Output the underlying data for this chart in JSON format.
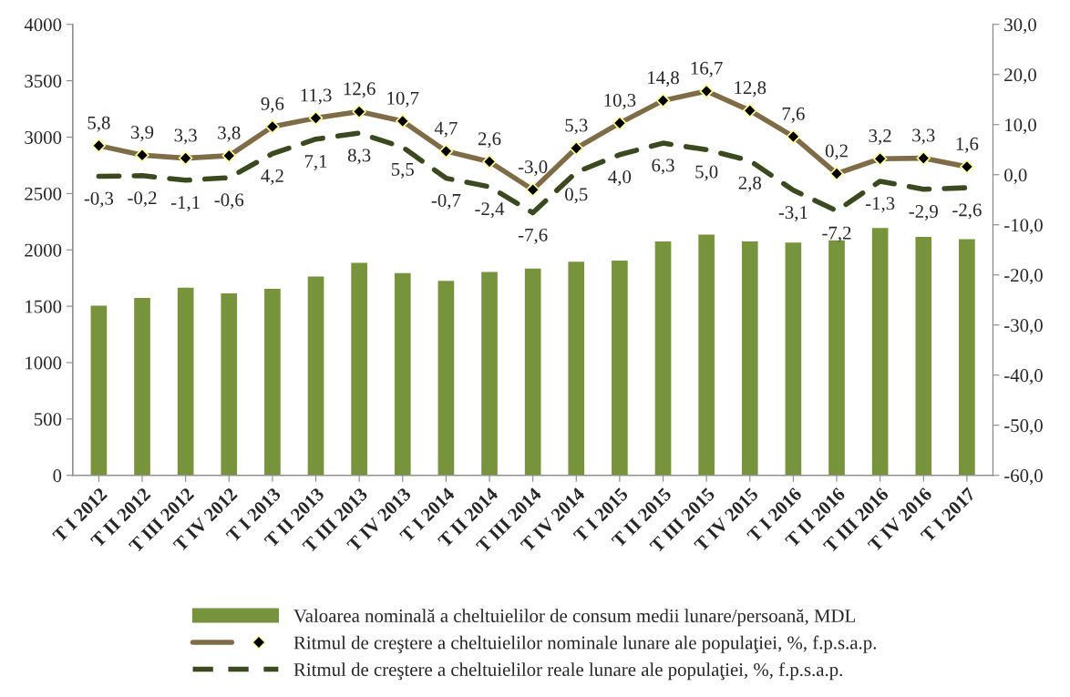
{
  "chart_data": {
    "type": "bar",
    "categories": [
      "T I 2012",
      "T II 2012",
      "T III 2012",
      "T IV 2012",
      "T I 2013",
      "T II 2013",
      "T III 2013",
      "T IV 2013",
      "T I 2014",
      "T II 2014",
      "T III 2014",
      "T IV 2014",
      "T I 2015",
      "T II 2015",
      "T III 2015",
      "T IV 2015",
      "T I 2016",
      "T II 2016",
      "T III 2016",
      "T IV 2016",
      "T I 2017"
    ],
    "series": [
      {
        "name": "Valoarea nominală a cheltuielilor de consum medii lunare/persoană, MDL",
        "color": "#77933c",
        "values": [
          1510,
          1580,
          1670,
          1620,
          1660,
          1770,
          1890,
          1800,
          1730,
          1810,
          1840,
          1900,
          1910,
          2080,
          2140,
          2080,
          2070,
          2090,
          2200,
          2120,
          2100
        ]
      },
      {
        "name": "Ritmul de creştere a cheltuielilor nominale lunare ale populaţiei, %, f.p.s.a.p.",
        "type": "line",
        "axis": "y2",
        "color": "#7f6b45",
        "marker": "diamond",
        "line_style": "solid",
        "values": [
          5.8,
          3.9,
          3.3,
          3.8,
          9.6,
          11.3,
          12.6,
          10.7,
          4.7,
          2.6,
          -3.0,
          5.3,
          10.3,
          14.8,
          16.7,
          12.8,
          7.6,
          0.2,
          3.2,
          3.3,
          1.6
        ],
        "value_labels": [
          "5,8",
          "3,9",
          "3,3",
          "3,8",
          "9,6",
          "11,3",
          "12,6",
          "10,7",
          "4,7",
          "2,6",
          "-3,0",
          "5,3",
          "10,3",
          "14,8",
          "16,7",
          "12,8",
          "7,6",
          "0,2",
          "3,2",
          "3,3",
          "1,6"
        ]
      },
      {
        "name": "Ritmul de creştere a cheltuielilor reale lunare ale populaţiei, %, f.p.s.a.p.",
        "type": "line",
        "axis": "y2",
        "color": "#3b4a1e",
        "marker": "none",
        "line_style": "dashed",
        "values": [
          -0.3,
          -0.2,
          -1.1,
          -0.6,
          4.2,
          7.1,
          8.3,
          5.5,
          -0.7,
          -2.4,
          -7.6,
          0.5,
          4.0,
          6.3,
          5.0,
          2.8,
          -3.1,
          -7.2,
          -1.3,
          -2.9,
          -2.6
        ],
        "value_labels": [
          "-0,3",
          "-0,2",
          "-1,1",
          "-0,6",
          "4,2",
          "7,1",
          "8,3",
          "5,5",
          "-0,7",
          "-2,4",
          "-7,6",
          "0,5",
          "4,0",
          "6,3",
          "5,0",
          "2,8",
          "-3,1",
          "-7,2",
          "-1,3",
          "-2,9",
          "-2,6"
        ]
      }
    ],
    "ylim": [
      0,
      4000
    ],
    "yticks": [
      0,
      500,
      1000,
      1500,
      2000,
      2500,
      3000,
      3500,
      4000
    ],
    "y2lim": [
      -60,
      30
    ],
    "y2ticks": [
      {
        "value": -60,
        "label": "-60,0"
      },
      {
        "value": -50,
        "label": "-50,0"
      },
      {
        "value": -40,
        "label": "-40,0"
      },
      {
        "value": -30,
        "label": "-30,0"
      },
      {
        "value": -20,
        "label": "-20,0"
      },
      {
        "value": -10,
        "label": "-10,0"
      },
      {
        "value": 0,
        "label": "0,0"
      },
      {
        "value": 10,
        "label": "10,0"
      },
      {
        "value": 20,
        "label": "20,0"
      },
      {
        "value": 30,
        "label": "30,0"
      }
    ],
    "grid": false,
    "legend": "bottom"
  }
}
